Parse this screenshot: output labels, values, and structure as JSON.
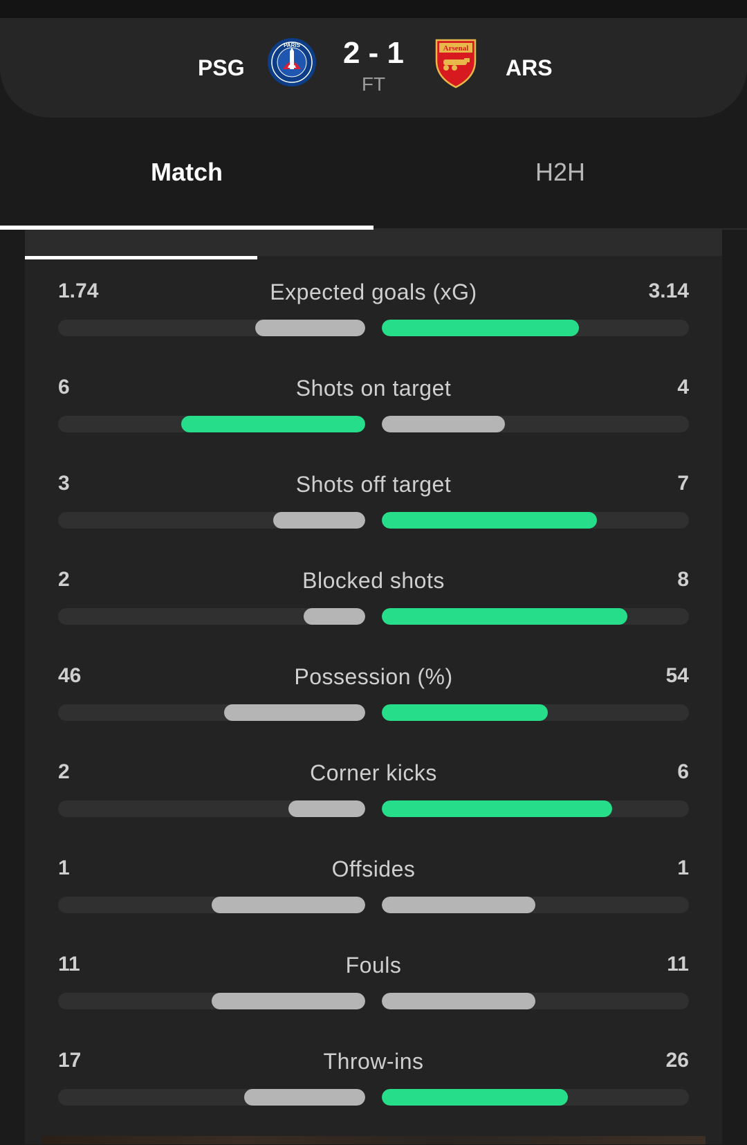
{
  "match": {
    "home": {
      "abbr": "PSG",
      "crest_text": "PARIS"
    },
    "away": {
      "abbr": "ARS",
      "crest_text": "Arsenal"
    },
    "score": "2 - 1",
    "status": "FT"
  },
  "tabs": [
    {
      "label": "Match",
      "active": true
    },
    {
      "label": "H2H",
      "active": false
    }
  ],
  "colors": {
    "leader": "#26de8a",
    "other": "#b5b5b5",
    "track": "#303030"
  },
  "stats": [
    {
      "label": "Expected goals (xG)",
      "home": "1.74",
      "away": "3.14",
      "home_share": 0.357,
      "away_share": 0.643,
      "leader": "away"
    },
    {
      "label": "Shots on target",
      "home": "6",
      "away": "4",
      "home_share": 0.6,
      "away_share": 0.4,
      "leader": "home"
    },
    {
      "label": "Shots off target",
      "home": "3",
      "away": "7",
      "home_share": 0.3,
      "away_share": 0.7,
      "leader": "away"
    },
    {
      "label": "Blocked shots",
      "home": "2",
      "away": "8",
      "home_share": 0.2,
      "away_share": 0.8,
      "leader": "away"
    },
    {
      "label": "Possession (%)",
      "home": "46",
      "away": "54",
      "home_share": 0.46,
      "away_share": 0.54,
      "leader": "away"
    },
    {
      "label": "Corner kicks",
      "home": "2",
      "away": "6",
      "home_share": 0.25,
      "away_share": 0.75,
      "leader": "away"
    },
    {
      "label": "Offsides",
      "home": "1",
      "away": "1",
      "home_share": 0.5,
      "away_share": 0.5,
      "leader": "none"
    },
    {
      "label": "Fouls",
      "home": "11",
      "away": "11",
      "home_share": 0.5,
      "away_share": 0.5,
      "leader": "none"
    },
    {
      "label": "Throw-ins",
      "home": "17",
      "away": "26",
      "home_share": 0.395,
      "away_share": 0.605,
      "leader": "away"
    }
  ]
}
